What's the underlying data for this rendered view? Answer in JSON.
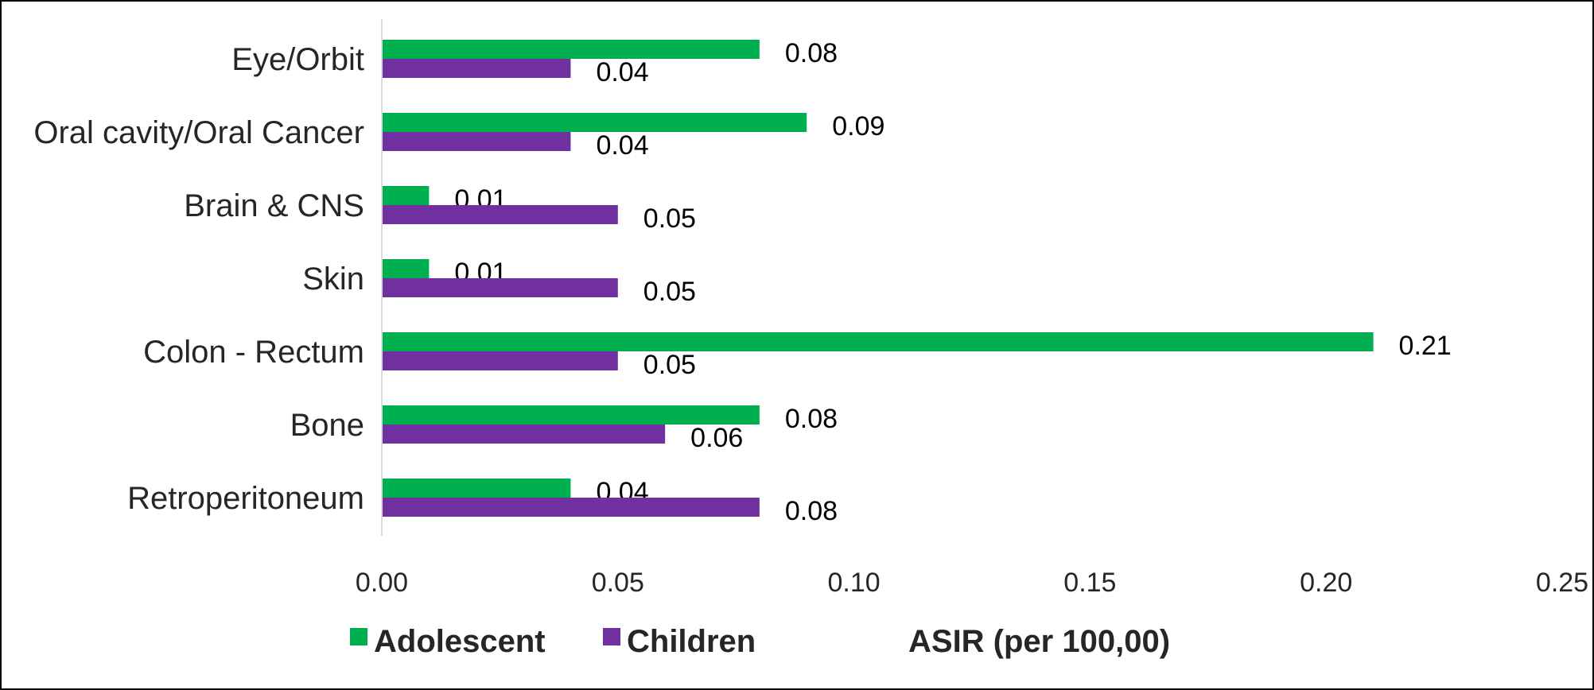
{
  "chart_data": {
    "type": "bar",
    "orientation": "horizontal",
    "categories": [
      "Eye/Orbit",
      "Oral cavity/Oral Cancer",
      "Brain & CNS",
      "Skin",
      "Colon - Rectum",
      "Bone",
      "Retroperitoneum"
    ],
    "series": [
      {
        "name": "Adolescent",
        "color": "#00b050",
        "values": [
          0.08,
          0.09,
          0.01,
          0.01,
          0.21,
          0.08,
          0.04
        ]
      },
      {
        "name": "Children",
        "color": "#7030a0",
        "values": [
          0.04,
          0.04,
          0.05,
          0.05,
          0.05,
          0.06,
          0.08
        ]
      }
    ],
    "value_labels": {
      "Adolescent": [
        "0.08",
        "0.09",
        "0.01",
        "0.01",
        "0.21",
        "0.08",
        "0.04"
      ],
      "Children": [
        "0.04",
        "0.04",
        "0.05",
        "0.05",
        "0.05",
        "0.06",
        "0.08"
      ]
    },
    "xlabel": "ASIR (per 100,00)",
    "ylabel": "",
    "xlim": [
      0,
      0.25
    ],
    "xticks": [
      "0.00",
      "0.05",
      "0.10",
      "0.15",
      "0.20",
      "0.25"
    ],
    "grid": false,
    "legend_position": "bottom-left"
  }
}
